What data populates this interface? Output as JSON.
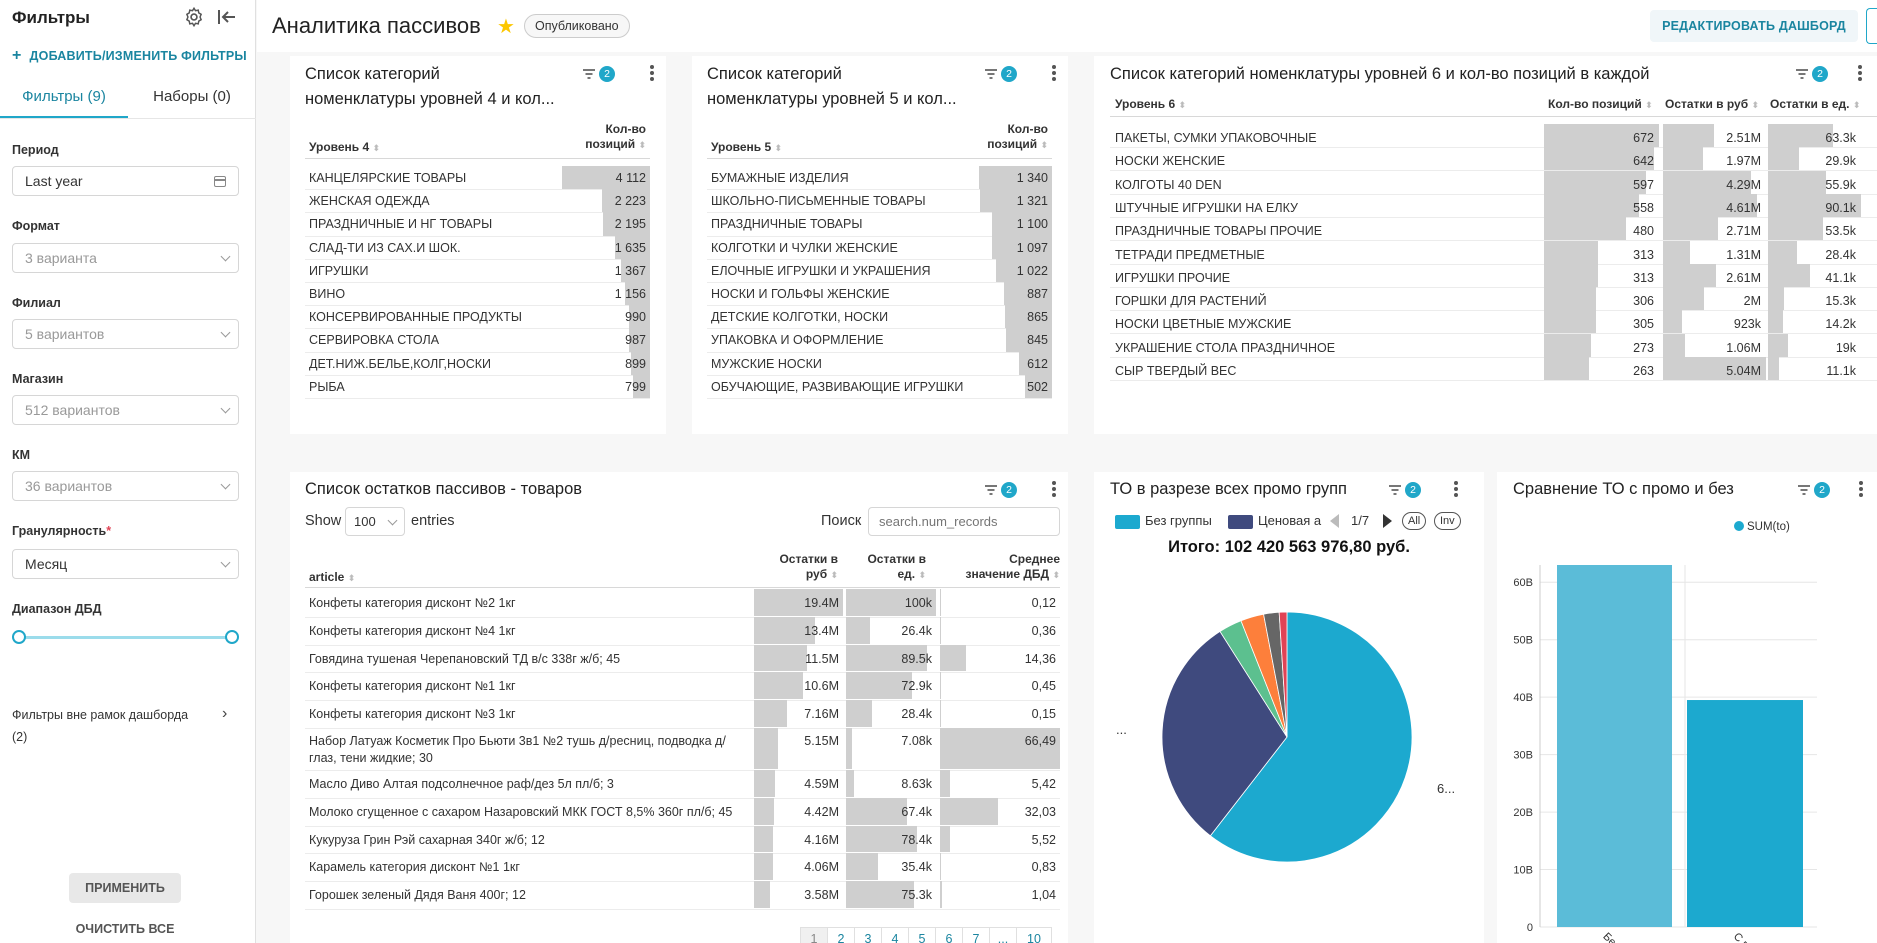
{
  "sidebar": {
    "title": "Фильтры",
    "add_filters": "ДОБАВИТЬ/ИЗМЕНИТЬ ФИЛЬТРЫ",
    "tabs": [
      "Фильтры (9)",
      "Наборы (0)"
    ],
    "filters": [
      {
        "label": "Период",
        "value": "Last year"
      },
      {
        "label": "Формат",
        "placeholder": "3 варианта"
      },
      {
        "label": "Филиал",
        "placeholder": "5 вариантов"
      },
      {
        "label": "Магазин",
        "placeholder": "512 вариантов"
      },
      {
        "label": "КМ",
        "placeholder": "36 вариантов"
      },
      {
        "label": "Гранулярность",
        "required": "*",
        "value": "Месяц"
      },
      {
        "label": "Диапазон ДБД"
      }
    ],
    "outside_filters": "Фильтры вне рамок дашборда",
    "outside_count": "(2)",
    "apply": "ПРИМЕНИТЬ",
    "clear": "ОЧИСТИТЬ ВСЕ"
  },
  "header": {
    "title": "Аналитика пассивов",
    "status": "Опубликовано",
    "edit": "РЕДАКТИРОВАТЬ ДАШБОРД"
  },
  "panels": {
    "level4": {
      "title": [
        "Список категорий",
        "номенклатуры уровней 4 и кол..."
      ],
      "filter_count": "2",
      "headers": [
        "Уровень 4",
        "Кол-во",
        "позиций"
      ],
      "rows": [
        [
          "КАНЦЕЛЯРСКИЕ ТОВАРЫ",
          "4 112"
        ],
        [
          "ЖЕНСКАЯ ОДЕЖДА",
          "2 223"
        ],
        [
          "ПРАЗДНИЧНЫЕ И НГ ТОВАРЫ",
          "2 195"
        ],
        [
          "СЛАД-ТИ ИЗ САХ.И ШОК.",
          "1 635"
        ],
        [
          "ИГРУШКИ",
          "1 367"
        ],
        [
          "ВИНО",
          "1 156"
        ],
        [
          "КОНСЕРВИРОВАННЫЕ ПРОДУКТЫ",
          "990"
        ],
        [
          "СЕРВИРОВКА СТОЛА",
          "987"
        ],
        [
          "ДЕТ.НИЖ.БЕЛЬЕ,КОЛГ,НОСКИ",
          "899"
        ],
        [
          "РЫБА",
          "799"
        ]
      ]
    },
    "level5": {
      "title": [
        "Список категорий",
        "номенклатуры уровней 5 и кол..."
      ],
      "filter_count": "2",
      "headers": [
        "Уровень 5",
        "Кол-во",
        "позиций"
      ],
      "rows": [
        [
          "БУМАЖНЫЕ ИЗДЕЛИЯ",
          "1 340"
        ],
        [
          "ШКОЛЬНО-ПИСЬМЕННЫЕ ТОВАРЫ",
          "1 321"
        ],
        [
          "ПРАЗДНИЧНЫЕ ТОВАРЫ",
          "1 100"
        ],
        [
          "КОЛГОТКИ И ЧУЛКИ ЖЕНСКИЕ",
          "1 097"
        ],
        [
          "ЕЛОЧНЫЕ ИГРУШКИ И УКРАШЕНИЯ",
          "1 022"
        ],
        [
          "НОСКИ И ГОЛЬФЫ ЖЕНСКИЕ",
          "887"
        ],
        [
          "ДЕТСКИЕ КОЛГОТКИ, НОСКИ",
          "865"
        ],
        [
          "УПАКОВКА И ОФОРМЛЕНИЕ",
          "845"
        ],
        [
          "МУЖСКИЕ НОСКИ",
          "612"
        ],
        [
          "ОБУЧАЮЩИЕ, РАЗВИВАЮЩИЕ ИГРУШКИ",
          "502"
        ]
      ]
    },
    "level6": {
      "title": "Список категорий номенклатуры уровней 6 и кол-во позиций в каждой",
      "filter_count": "2",
      "headers": [
        "Уровень 6",
        "Кол-во позиций",
        "Остатки в руб",
        "Остатки в ед."
      ],
      "rows": [
        [
          "ПАКЕТЫ, СУМКИ УПАКОВОЧНЫЕ",
          "672",
          "2.51M",
          "63.3k"
        ],
        [
          "НОСКИ ЖЕНСКИЕ",
          "642",
          "1.97M",
          "29.9k"
        ],
        [
          "КОЛГОТЫ 40 DEN",
          "597",
          "4.29M",
          "55.9k"
        ],
        [
          "ШТУЧНЫЕ ИГРУШКИ НА ЕЛКУ",
          "558",
          "4.61M",
          "90.1k"
        ],
        [
          "ПРАЗДНИЧНЫЕ ТОВАРЫ ПРОЧИЕ",
          "480",
          "2.71M",
          "53.5k"
        ],
        [
          "ТЕТРАДИ ПРЕДМЕТНЫЕ",
          "313",
          "1.31M",
          "28.4k"
        ],
        [
          "ИГРУШКИ ПРОЧИЕ",
          "313",
          "2.61M",
          "41.1k"
        ],
        [
          "ГОРШКИ ДЛЯ РАСТЕНИЙ",
          "306",
          "2M",
          "15.3k"
        ],
        [
          "НОСКИ ЦВЕТНЫЕ МУЖСКИЕ",
          "305",
          "923k",
          "14.2k"
        ],
        [
          "УКРАШЕНИЕ СТОЛА ПРАЗДНИЧНОЕ",
          "273",
          "1.06M",
          "19k"
        ],
        [
          "СЫР ТВЕРДЫЙ ВЕС",
          "263",
          "5.04M",
          "11.1k"
        ]
      ]
    },
    "goods": {
      "title": "Список остатков пассивов - товаров",
      "filter_count": "2",
      "show": "Show",
      "entries_value": "100",
      "entries": "entries",
      "search_label": "Поиск",
      "search_placeholder": "search.num_records",
      "headers": [
        "article",
        "Остатки в",
        "руб",
        "Остатки в",
        "ед.",
        "Среднее",
        "значение ДБД"
      ],
      "rows": [
        [
          "Конфеты категория дисконт №2 1кг",
          "19.4M",
          "100k",
          "0,12"
        ],
        [
          "Конфеты категория дисконт №4 1кг",
          "13.4M",
          "26.4k",
          "0,36"
        ],
        [
          "Говядина тушеная Черепановский ТД в/с 338г ж/б; 45",
          "11.5M",
          "89.5k",
          "14,36"
        ],
        [
          "Конфеты категория дисконт №1 1кг",
          "10.6M",
          "72.9k",
          "0,45"
        ],
        [
          "Конфеты категория дисконт №3 1кг",
          "7.16M",
          "28.4k",
          "0,15"
        ],
        [
          "Набор Латуаж Косметик Про Бьюти 3в1 №2 тушь д/ресниц, подводка д/",
          "5.15M",
          "7.08k",
          "66,49"
        ],
        [
          "Масло Диво Алтая подсолнечное раф/дез 5л пл/б; 3",
          "4.59M",
          "8.63k",
          "5,42"
        ],
        [
          "Молоко сгущенное с сахаром Назаровский МКК ГОСТ 8,5% 360г пл/б; 45",
          "4.42M",
          "67.4k",
          "32,03"
        ],
        [
          "Кукуруза Грин Рэй сахарная 340г ж/б; 12",
          "4.16M",
          "78.4k",
          "5,52"
        ],
        [
          "Карамель категория дисконт №1 1кг",
          "4.06M",
          "35.4k",
          "0,83"
        ],
        [
          "Горошек зеленый Дядя Ваня 400г; 12",
          "3.58M",
          "75.3k",
          "1,04"
        ]
      ],
      "row6_line2": "глаз, тени жидкие; 30",
      "pages": [
        "1",
        "2",
        "3",
        "4",
        "5",
        "6",
        "7",
        "...",
        "10"
      ]
    },
    "promo": {
      "title": "ТО в разрезе всех промо групп",
      "filter_count": "2",
      "legend": [
        "Без группы",
        "Ценовая а"
      ],
      "page": "1/7",
      "all": "All",
      "inv": "Inv",
      "total": "Итого: 102 420 563 976,80 руб.",
      "label_left": "...",
      "label_right": "6..."
    },
    "compare": {
      "title": "Сравнение ТО с промо и без",
      "filter_count": "2"
    }
  },
  "chart_data": [
    {
      "type": "pie",
      "title": "ТО в разрезе всех промо групп",
      "categories": [
        "Без группы",
        "Ценовая а",
        "",
        "",
        "",
        ""
      ],
      "values": [
        0.605,
        0.305,
        0.03,
        0.03,
        0.02,
        0.01
      ],
      "colors": [
        "#1ca9cf",
        "#3f4a7e",
        "#5cc08f",
        "#fd7f3b",
        "#666666",
        "#e04355"
      ]
    },
    {
      "type": "bar",
      "title": "Сравнение ТО с промо и без",
      "categories": [
        "Без промо",
        "С промо"
      ],
      "series": [
        {
          "name": "SUM(to)",
          "values": [
            63,
            39.5
          ]
        }
      ],
      "yticks": [
        "0",
        "10B",
        "20B",
        "30B",
        "40B",
        "50B",
        "60B"
      ],
      "ylim": [
        0,
        63
      ],
      "unit": "B",
      "color": "#1ca9cf"
    }
  ]
}
